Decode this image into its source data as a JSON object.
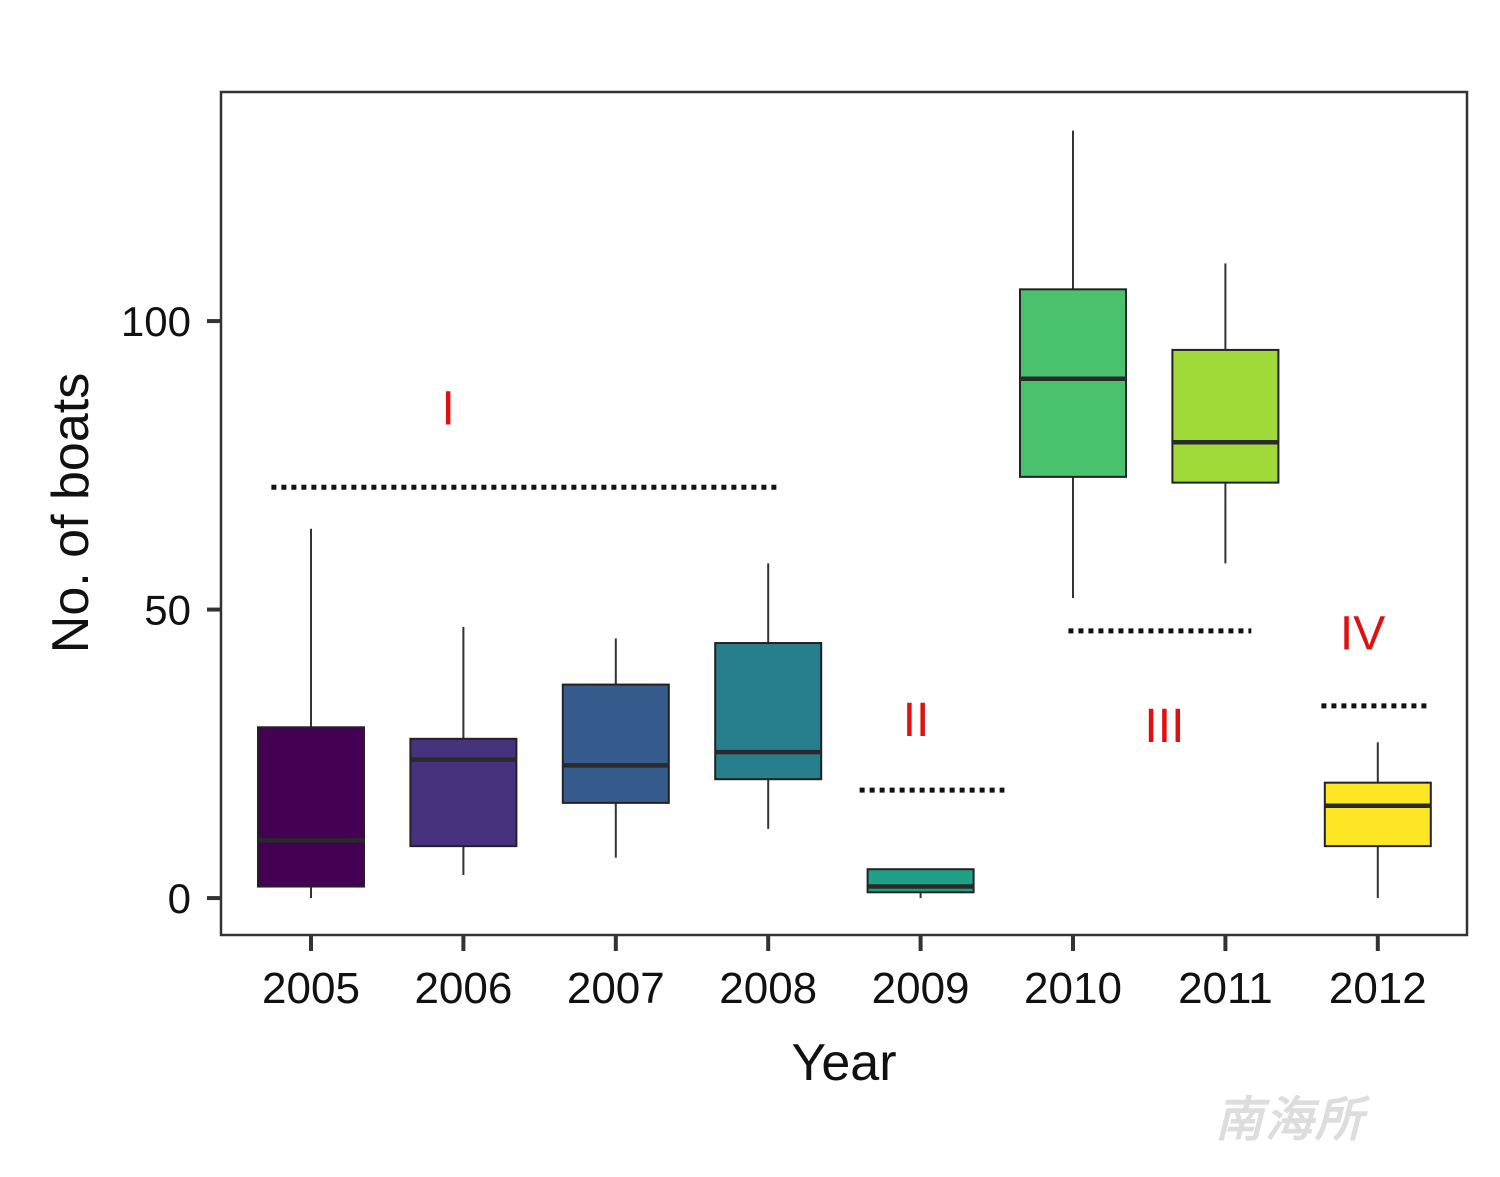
{
  "chart_data": {
    "type": "box",
    "xlabel": "Year",
    "ylabel": "No. of boats",
    "categories": [
      "2005",
      "2006",
      "2007",
      "2008",
      "2009",
      "2010",
      "2011",
      "2012"
    ],
    "ylim": [
      -6.4,
      139.7
    ],
    "yticks": [
      0,
      50,
      100
    ],
    "grid": false,
    "legend": "none",
    "boxes": [
      {
        "x": "2005",
        "whisker_low": 0,
        "q1": 2,
        "median": 10,
        "q3": 29.6,
        "whisker_high": 64,
        "color": "#440154"
      },
      {
        "x": "2006",
        "whisker_low": 4,
        "q1": 9,
        "median": 24,
        "q3": 27.6,
        "whisker_high": 47,
        "color": "#46327e"
      },
      {
        "x": "2007",
        "whisker_low": 7,
        "q1": 16.5,
        "median": 23,
        "q3": 37,
        "whisker_high": 45,
        "color": "#365c8d"
      },
      {
        "x": "2008",
        "whisker_low": 12,
        "q1": 20.6,
        "median": 25.3,
        "q3": 44.2,
        "whisker_high": 58,
        "color": "#277f8e"
      },
      {
        "x": "2009",
        "whisker_low": 0,
        "q1": 1,
        "median": 2,
        "q3": 5,
        "whisker_high": 5,
        "color": "#1fa187"
      },
      {
        "x": "2010",
        "whisker_low": 52,
        "q1": 73,
        "median": 90,
        "q3": 105.5,
        "whisker_high": 133,
        "color": "#4ac16d"
      },
      {
        "x": "2011",
        "whisker_low": 58,
        "q1": 72,
        "median": 79,
        "q3": 95,
        "whisker_high": 110,
        "color": "#a0da39"
      },
      {
        "x": "2012",
        "whisker_low": 0,
        "q1": 9,
        "median": 16,
        "q3": 20,
        "whisker_high": 27,
        "color": "#fde725"
      }
    ],
    "annotations": [
      {
        "label": "I",
        "label_x": 2005.9,
        "label_y": 85,
        "line_y": 71.2,
        "line_from": 2004.74,
        "line_to": 2008.08
      },
      {
        "label": "II",
        "label_x": 2008.97,
        "label_y": 31,
        "line_y": 18.7,
        "line_from": 2008.6,
        "line_to": 2009.55
      },
      {
        "label": "III",
        "label_x": 2010.6,
        "label_y": 30,
        "line_y": 46.3,
        "line_from": 2009.97,
        "line_to": 2011.17
      },
      {
        "label": "IV",
        "label_x": 2011.9,
        "label_y": 46,
        "line_y": 33.3,
        "line_from": 2011.63,
        "line_to": 2012.33
      }
    ],
    "annotation_color": "#e01010"
  },
  "watermark": "南海所"
}
